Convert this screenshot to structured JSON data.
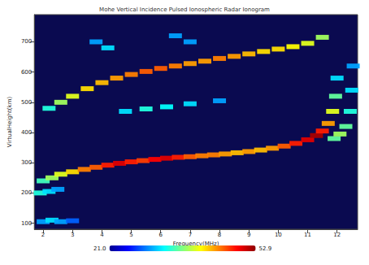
{
  "chart_data": {
    "type": "scatter",
    "title": "Mohe Vertical Incidence Pulsed Ionospheric Radar Ionogram",
    "x_label": "Frequency(MHz)",
    "y_label": "VirtualHeight(km)",
    "xlim": [
      1.7,
      12.7
    ],
    "ylim": [
      80,
      790
    ],
    "xticks": [
      2,
      3,
      4,
      5,
      6,
      7,
      8,
      9,
      10,
      11,
      12
    ],
    "yticks": [
      100,
      200,
      300,
      400,
      500,
      600,
      700
    ],
    "grid": false,
    "marker": "square",
    "x": [
      2.0,
      2.3,
      2.6,
      3.0,
      3.4,
      3.8,
      4.2,
      4.6,
      5.0,
      5.4,
      5.8,
      6.2,
      6.6,
      7.0,
      7.4,
      7.8,
      8.2,
      8.6,
      9.0,
      9.4,
      9.8,
      10.2,
      10.6,
      11.0,
      11.3,
      11.5,
      11.7,
      11.85,
      11.95,
      12.0,
      11.9,
      12.1,
      12.3,
      12.45,
      12.5,
      12.55,
      1.9,
      2.2,
      2.5,
      2.0,
      2.3,
      2.6,
      3.0,
      2.2,
      2.6,
      3.0,
      3.5,
      4.0,
      4.5,
      5.0,
      5.5,
      6.0,
      6.5,
      7.0,
      7.5,
      8.0,
      8.5,
      9.0,
      9.5,
      10.0,
      10.5,
      11.0,
      11.5,
      3.8,
      4.2,
      6.5,
      7.0,
      4.8,
      5.5,
      6.2,
      7.0,
      8.0
    ],
    "values": [
      240,
      250,
      262,
      270,
      278,
      285,
      292,
      298,
      303,
      307,
      311,
      315,
      318,
      320,
      323,
      326,
      329,
      333,
      337,
      342,
      348,
      355,
      364,
      376,
      390,
      405,
      430,
      470,
      520,
      580,
      380,
      395,
      420,
      470,
      540,
      620,
      200,
      205,
      212,
      105,
      110,
      105,
      108,
      480,
      500,
      520,
      545,
      565,
      580,
      592,
      602,
      612,
      620,
      628,
      636,
      645,
      652,
      660,
      668,
      676,
      684,
      695,
      715,
      700,
      680,
      720,
      700,
      470,
      478,
      485,
      495,
      505
    ],
    "intensity": [
      35,
      38,
      40,
      42,
      45,
      46,
      48,
      50,
      48,
      47,
      49,
      50,
      48,
      46,
      45,
      45,
      44,
      43,
      44,
      43,
      44,
      46,
      48,
      50,
      52,
      48,
      44,
      40,
      36,
      32,
      36,
      38,
      36,
      34,
      32,
      30,
      34,
      32,
      30,
      30,
      32,
      30,
      28,
      34,
      38,
      40,
      42,
      43,
      44,
      45,
      46,
      46,
      45,
      44,
      44,
      45,
      44,
      43,
      42,
      42,
      41,
      40,
      38,
      30,
      32,
      30,
      30,
      32,
      34,
      33,
      32,
      30
    ],
    "colorbar": {
      "range": [
        21,
        52.9
      ],
      "ticks": [
        {
          "value": 21,
          "label": "21.0"
        },
        52.9
      ]
    }
  }
}
